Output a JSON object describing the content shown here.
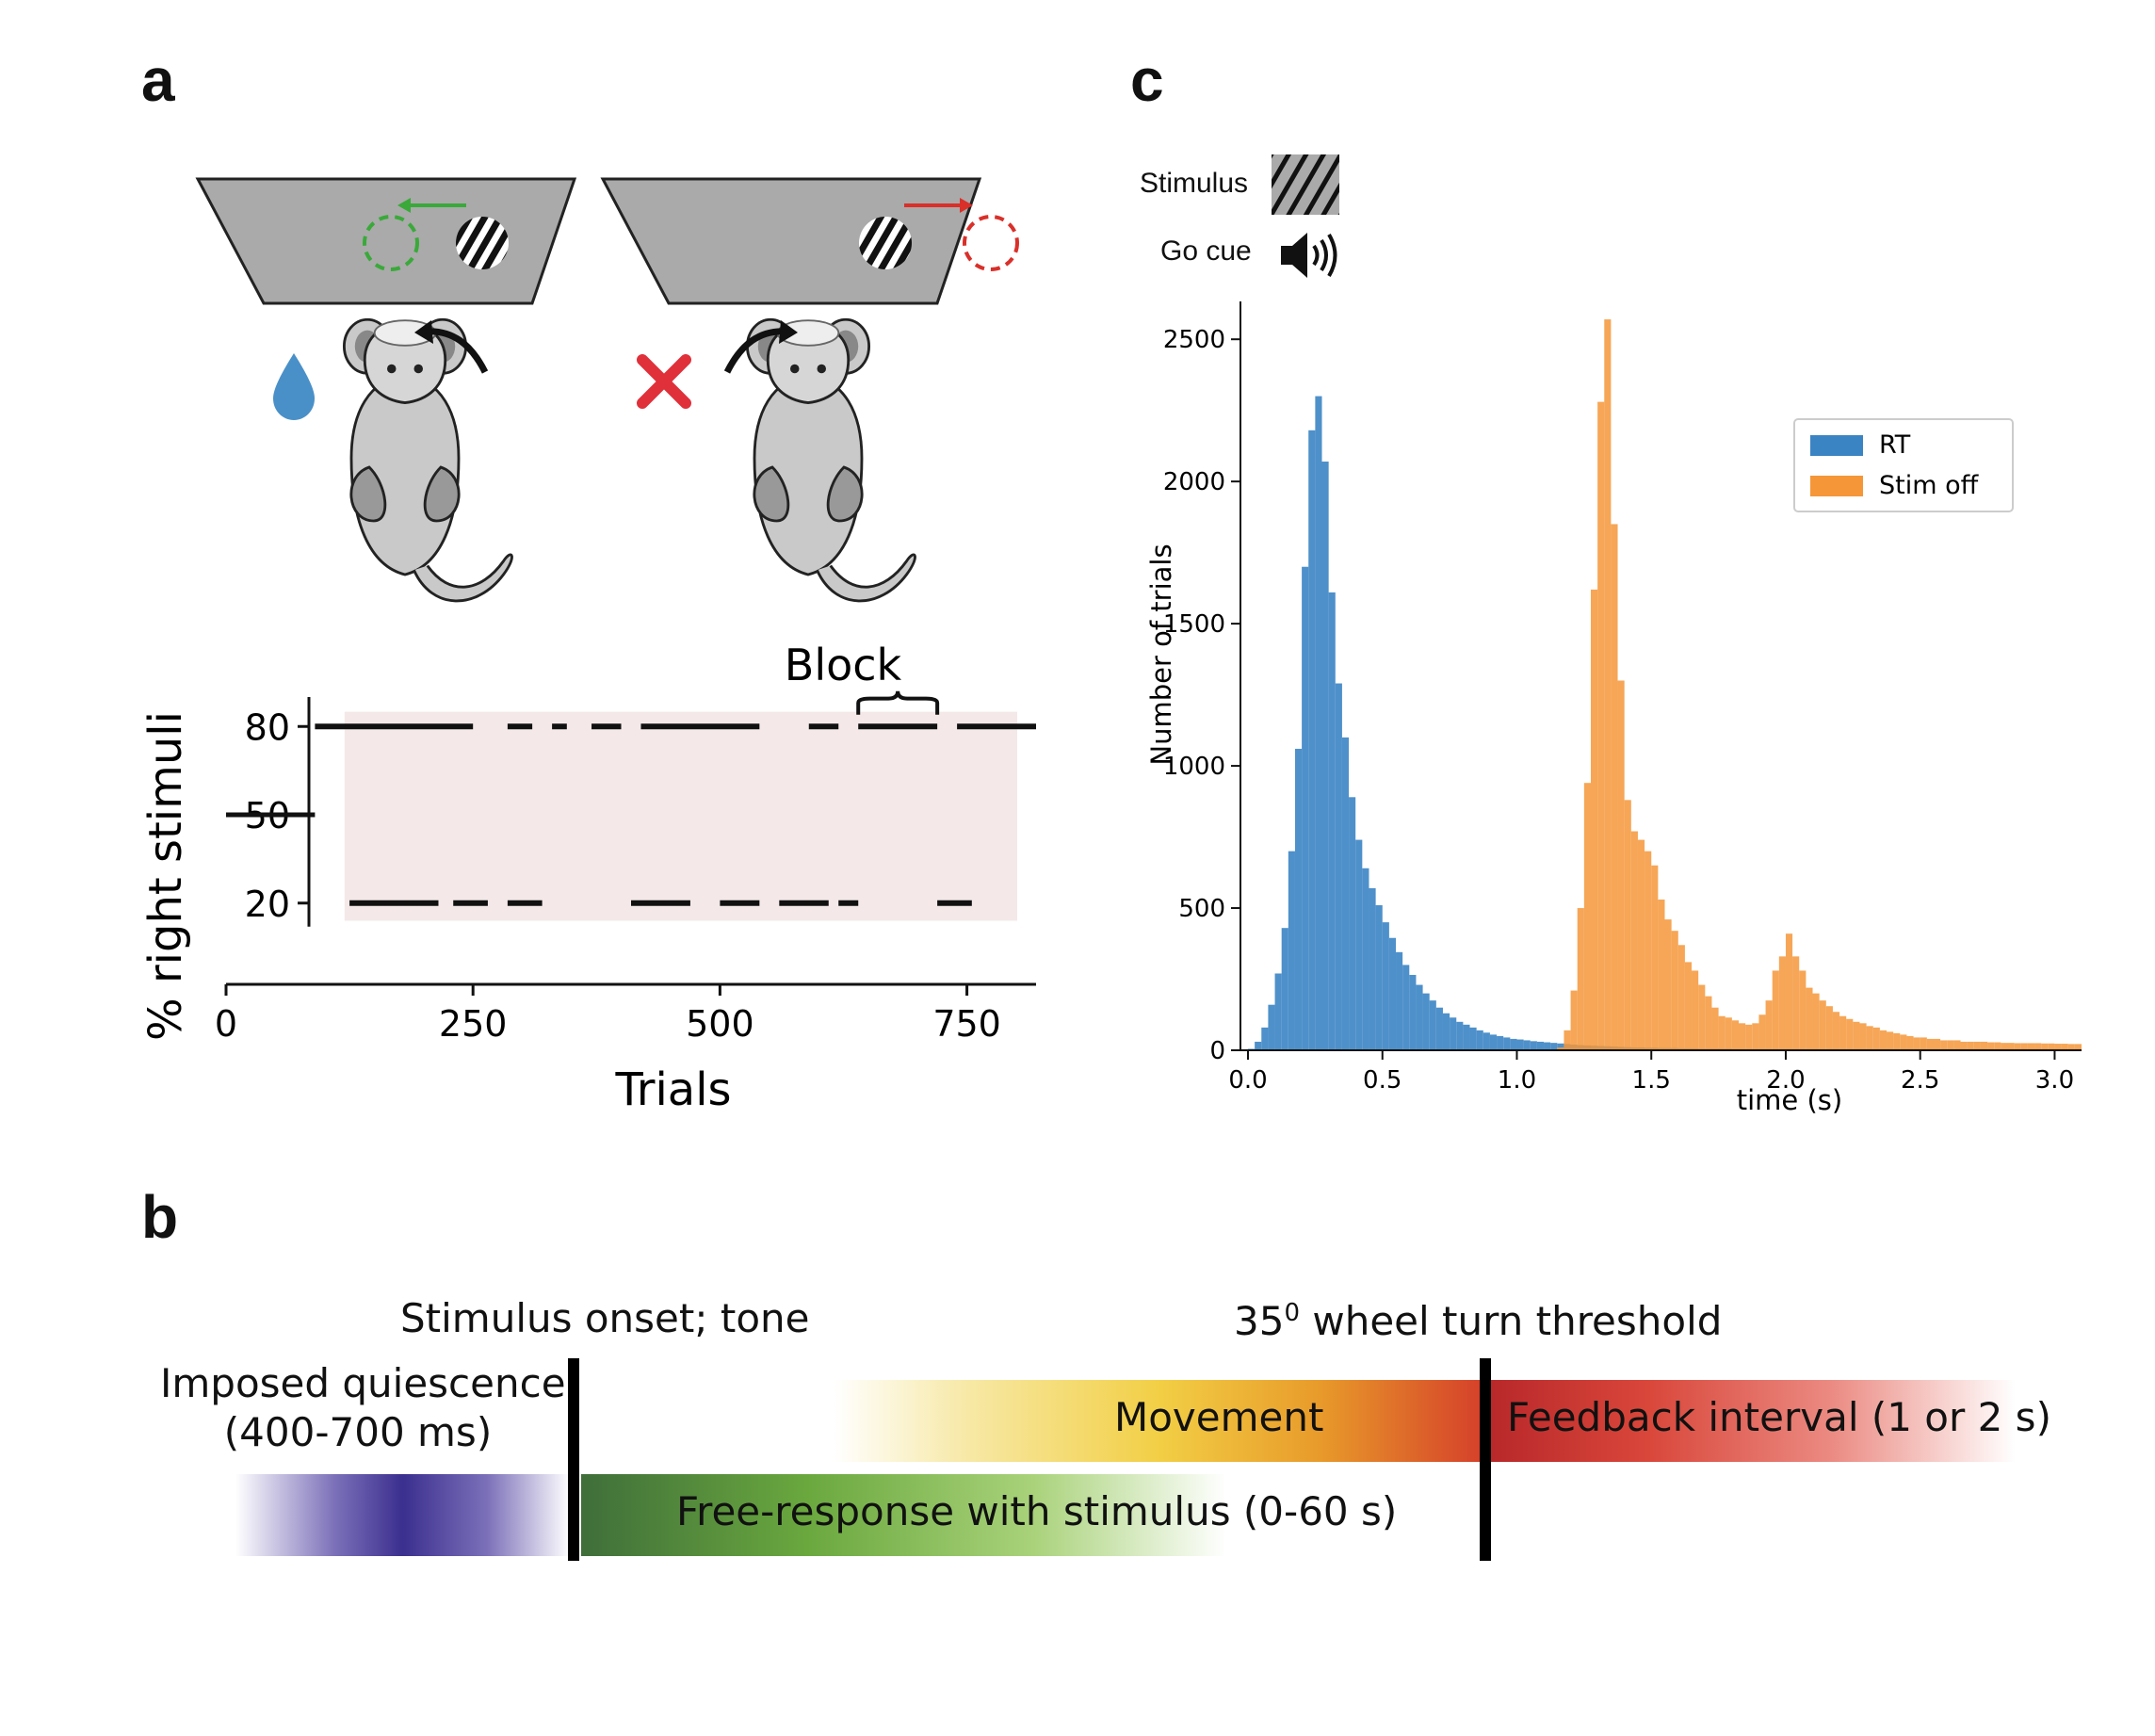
{
  "panels": {
    "a": "a",
    "b": "b",
    "c": "c"
  },
  "colors": {
    "reward_drop": "#4a90c8",
    "error_cross": "#e0303a",
    "left_arrow": "#3aa93a",
    "right_arrow": "#d9302a",
    "block_shade": "#f4e8e8",
    "rt": "#3b84c4",
    "stim_off": "#f59638"
  },
  "panel_a": {
    "block_label": "Block",
    "icons": [
      "water-drop-icon",
      "red-cross-icon",
      "mouse-icon",
      "grating-icon"
    ]
  },
  "panel_c": {
    "stimulus_label": "Stimulus",
    "go_cue_label": "Go cue",
    "icons": [
      "grating-icon",
      "speaker-icon"
    ]
  },
  "panel_b": {
    "stimulus_onset": "Stimulus onset; tone",
    "threshold_prefix": "35",
    "threshold_sup": "0",
    "threshold_suffix": " wheel turn threshold",
    "quiescence_line1": "Imposed quiescence",
    "quiescence_line2": "(400-700 ms)",
    "movement": "Movement",
    "feedback": "Feedback interval (1 or 2 s)",
    "free_response": "Free-response with stimulus (0-60 s)"
  },
  "chart_data": [
    {
      "type": "line",
      "xlabel": "Trials",
      "ylabel": "% right stimuli",
      "xlim": [
        0,
        820
      ],
      "ylim": [
        10,
        90
      ],
      "xticks": [
        0,
        250,
        500,
        750
      ],
      "yticks": [
        20,
        50,
        80
      ],
      "shaded_region_x": [
        120,
        820
      ],
      "unbiased_segment": {
        "x": [
          0,
          90
        ],
        "y": 50
      },
      "segments_80": [
        [
          90,
          250
        ],
        [
          285,
          310
        ],
        [
          330,
          345
        ],
        [
          370,
          400
        ],
        [
          420,
          540
        ],
        [
          590,
          620
        ],
        [
          640,
          720
        ],
        [
          740,
          820
        ]
      ],
      "segments_20": [
        [
          125,
          215
        ],
        [
          230,
          265
        ],
        [
          285,
          320
        ],
        [
          410,
          470
        ],
        [
          500,
          540
        ],
        [
          560,
          610
        ],
        [
          620,
          640
        ],
        [
          720,
          755
        ]
      ],
      "block_annotation_x": [
        640,
        720
      ]
    },
    {
      "type": "bar",
      "xlabel": "time (s)",
      "ylabel": "Number of trials",
      "xlim": [
        0.0,
        3.1
      ],
      "ylim": [
        0,
        2600
      ],
      "xticks": [
        0.0,
        0.5,
        1.0,
        1.5,
        2.0,
        2.5,
        3.0
      ],
      "yticks": [
        0,
        500,
        1000,
        1500,
        2000,
        2500
      ],
      "bin_width": 0.025,
      "bin_start": 0.0,
      "legend_position": "upper-right",
      "series": [
        {
          "name": "RT",
          "values": [
            5,
            30,
            80,
            160,
            270,
            430,
            700,
            1060,
            1700,
            2180,
            2300,
            2070,
            1610,
            1290,
            1100,
            890,
            740,
            640,
            570,
            510,
            450,
            395,
            345,
            300,
            265,
            230,
            200,
            175,
            150,
            130,
            115,
            100,
            90,
            80,
            70,
            62,
            55,
            50,
            45,
            40,
            38,
            35,
            32,
            30,
            28,
            26,
            24,
            22,
            20,
            18,
            17,
            16,
            15,
            14,
            13,
            12,
            11,
            10,
            10,
            9,
            9,
            8,
            8,
            8,
            7,
            7,
            7,
            6,
            6,
            6,
            6,
            6,
            5,
            5,
            5,
            5,
            5,
            5,
            5,
            5,
            5,
            5,
            5,
            5,
            5,
            5,
            5,
            5,
            5,
            5,
            5,
            5,
            5,
            5,
            5,
            5,
            5,
            5,
            5,
            5,
            5,
            5,
            5,
            5,
            5,
            5,
            5,
            5,
            5,
            5,
            5,
            5,
            5,
            5,
            5,
            5,
            5,
            5,
            5,
            5,
            5,
            5,
            5,
            5
          ]
        },
        {
          "name": "Stim off",
          "values": [
            0,
            0,
            0,
            0,
            0,
            0,
            0,
            0,
            0,
            0,
            0,
            0,
            0,
            0,
            0,
            0,
            0,
            0,
            0,
            0,
            0,
            0,
            0,
            0,
            0,
            0,
            0,
            0,
            0,
            0,
            0,
            0,
            0,
            0,
            0,
            0,
            0,
            0,
            0,
            0,
            0,
            0,
            0,
            0,
            0,
            0,
            10,
            70,
            210,
            500,
            940,
            1620,
            2280,
            2570,
            1850,
            1300,
            880,
            770,
            740,
            700,
            650,
            530,
            460,
            420,
            370,
            310,
            280,
            230,
            190,
            150,
            120,
            115,
            105,
            95,
            90,
            95,
            125,
            175,
            280,
            330,
            410,
            330,
            280,
            220,
            200,
            175,
            155,
            135,
            120,
            110,
            100,
            95,
            85,
            80,
            70,
            65,
            60,
            55,
            50,
            45,
            45,
            40,
            40,
            35,
            35,
            35,
            30,
            30,
            30,
            30,
            28,
            28,
            26,
            26,
            25,
            25,
            25,
            25,
            24,
            24,
            23,
            23,
            22,
            22
          ]
        }
      ]
    }
  ]
}
